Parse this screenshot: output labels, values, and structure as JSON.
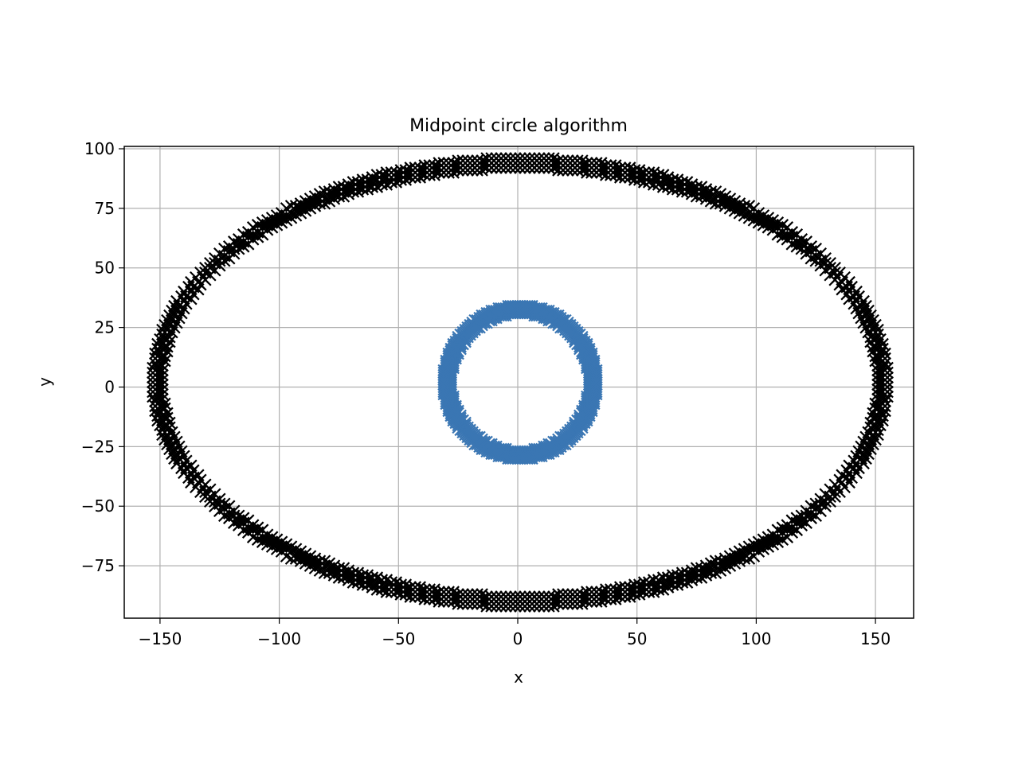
{
  "chart_data": {
    "type": "scatter",
    "title": "Midpoint circle algorithm",
    "xlabel": "x",
    "ylabel": "y",
    "xlim": [
      -165,
      166
    ],
    "ylim": [
      -97,
      101
    ],
    "xticks": [
      -150,
      -100,
      -50,
      0,
      50,
      100,
      150
    ],
    "yticks": [
      -75,
      -50,
      -25,
      0,
      25,
      50,
      75,
      100
    ],
    "grid": true,
    "legend": "none",
    "series": [
      {
        "marker": "x",
        "color": "#000000",
        "center": [
          1,
          2
        ],
        "radii": [
          150,
          90
        ],
        "step": 2,
        "offsets": [
          0,
          2,
          4
        ]
      },
      {
        "marker": "x",
        "color": "#3a76b3",
        "center": [
          1,
          2
        ],
        "radii": [
          29,
          29
        ],
        "step": 1,
        "offsets": [
          0,
          1,
          2,
          3
        ]
      }
    ]
  }
}
